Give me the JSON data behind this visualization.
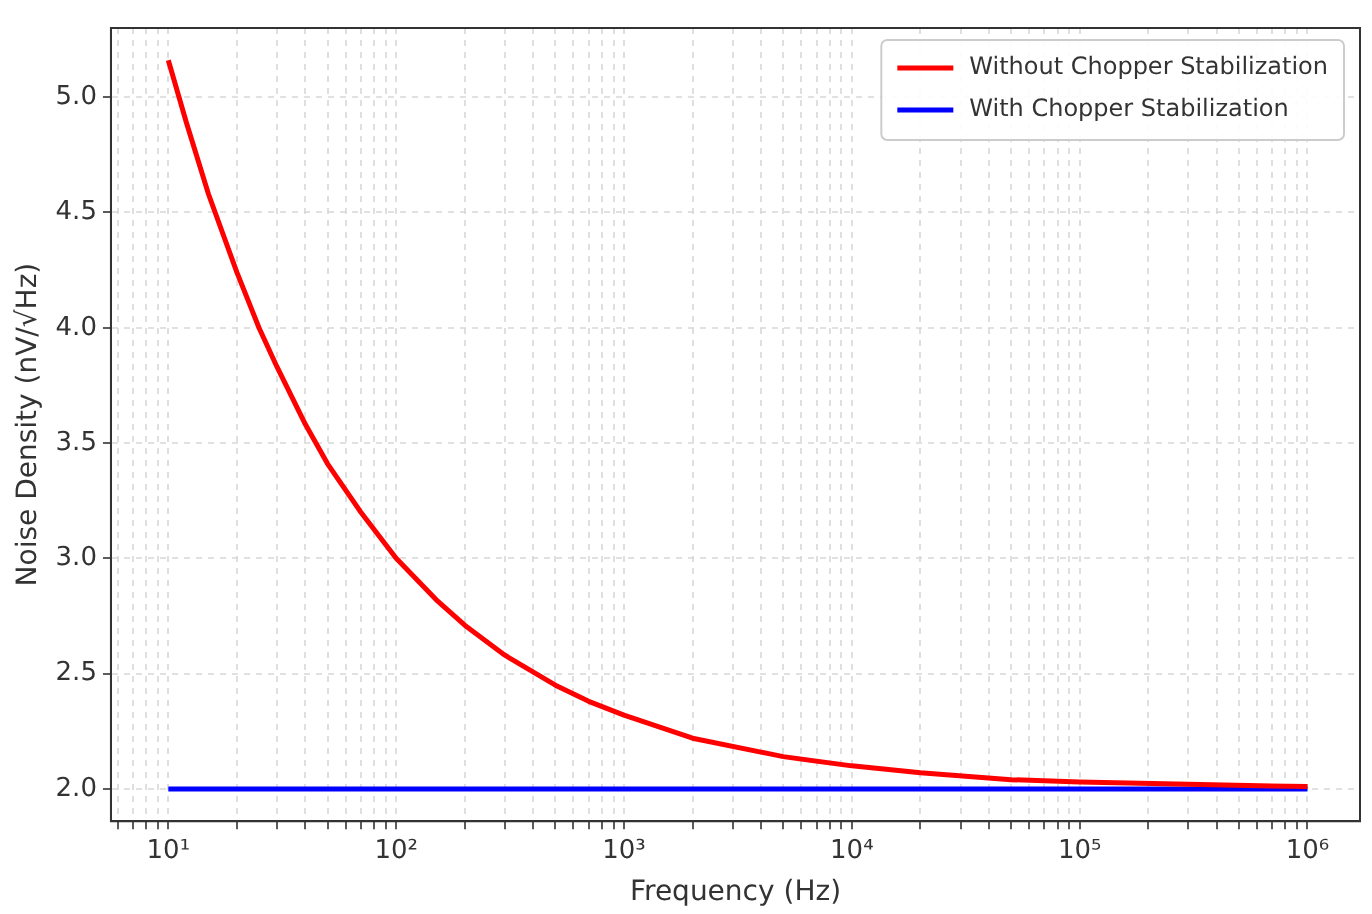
{
  "chart_data": {
    "type": "line",
    "xlabel": "Frequency (Hz)",
    "ylabel": "Noise Density (nV/√Hz)",
    "log": "x",
    "grid": true,
    "legend": "top right",
    "marker": "none",
    "line_style": "solid",
    "xlim": [
      5.6,
      1700000
    ],
    "ylim": [
      1.86,
      5.3
    ],
    "xticks": [
      {
        "value": 6,
        "label": null
      },
      {
        "value": 7,
        "label": null
      },
      {
        "value": 8,
        "label": null
      },
      {
        "value": 9,
        "label": null
      },
      {
        "value": 10,
        "label": "10¹"
      },
      {
        "value": 20,
        "label": null
      },
      {
        "value": 30,
        "label": null
      },
      {
        "value": 40,
        "label": null
      },
      {
        "value": 50,
        "label": null
      },
      {
        "value": 60,
        "label": null
      },
      {
        "value": 70,
        "label": null
      },
      {
        "value": 80,
        "label": null
      },
      {
        "value": 90,
        "label": null
      },
      {
        "value": 100,
        "label": "10²"
      },
      {
        "value": 200,
        "label": null
      },
      {
        "value": 300,
        "label": null
      },
      {
        "value": 400,
        "label": null
      },
      {
        "value": 500,
        "label": null
      },
      {
        "value": 600,
        "label": null
      },
      {
        "value": 700,
        "label": null
      },
      {
        "value": 800,
        "label": null
      },
      {
        "value": 900,
        "label": null
      },
      {
        "value": 1000,
        "label": "10³"
      },
      {
        "value": 2000,
        "label": null
      },
      {
        "value": 3000,
        "label": null
      },
      {
        "value": 4000,
        "label": null
      },
      {
        "value": 5000,
        "label": null
      },
      {
        "value": 6000,
        "label": null
      },
      {
        "value": 7000,
        "label": null
      },
      {
        "value": 8000,
        "label": null
      },
      {
        "value": 9000,
        "label": null
      },
      {
        "value": 10000,
        "label": "10⁴"
      },
      {
        "value": 20000,
        "label": null
      },
      {
        "value": 30000,
        "label": null
      },
      {
        "value": 40000,
        "label": null
      },
      {
        "value": 50000,
        "label": null
      },
      {
        "value": 60000,
        "label": null
      },
      {
        "value": 70000,
        "label": null
      },
      {
        "value": 80000,
        "label": null
      },
      {
        "value": 90000,
        "label": null
      },
      {
        "value": 100000,
        "label": "10⁵"
      },
      {
        "value": 200000,
        "label": null
      },
      {
        "value": 300000,
        "label": null
      },
      {
        "value": 400000,
        "label": null
      },
      {
        "value": 500000,
        "label": null
      },
      {
        "value": 600000,
        "label": null
      },
      {
        "value": 700000,
        "label": null
      },
      {
        "value": 800000,
        "label": null
      },
      {
        "value": 900000,
        "label": null
      },
      {
        "value": 1000000,
        "label": "10⁶"
      }
    ],
    "yticks": [
      {
        "value": 2,
        "label": "2.0"
      },
      {
        "value": 2.5,
        "label": "2.5"
      },
      {
        "value": 3,
        "label": "3.0"
      },
      {
        "value": 3.5,
        "label": "3.5"
      },
      {
        "value": 4,
        "label": "4.0"
      },
      {
        "value": 4.5,
        "label": "4.5"
      },
      {
        "value": 5,
        "label": "5.0"
      }
    ],
    "series": [
      {
        "name": "Without Chopper Stabilization",
        "color": "#ff0000",
        "x": [
          10,
          12,
          15,
          20,
          25,
          30,
          40,
          50,
          70,
          100,
          150,
          200,
          300,
          500,
          700,
          1000,
          2000,
          5000,
          10000,
          20000,
          50000,
          100000,
          300000,
          1000000
        ],
        "values": [
          5.16,
          4.89,
          4.58,
          4.24,
          4.0,
          3.83,
          3.58,
          3.41,
          3.2,
          3.0,
          2.82,
          2.71,
          2.58,
          2.45,
          2.38,
          2.32,
          2.22,
          2.14,
          2.1,
          2.07,
          2.04,
          2.03,
          2.02,
          2.01
        ]
      },
      {
        "name": "With Chopper Stabilization",
        "color": "#0000ff",
        "x": [
          10,
          1000000
        ],
        "values": [
          2.0,
          2.0
        ]
      }
    ]
  }
}
